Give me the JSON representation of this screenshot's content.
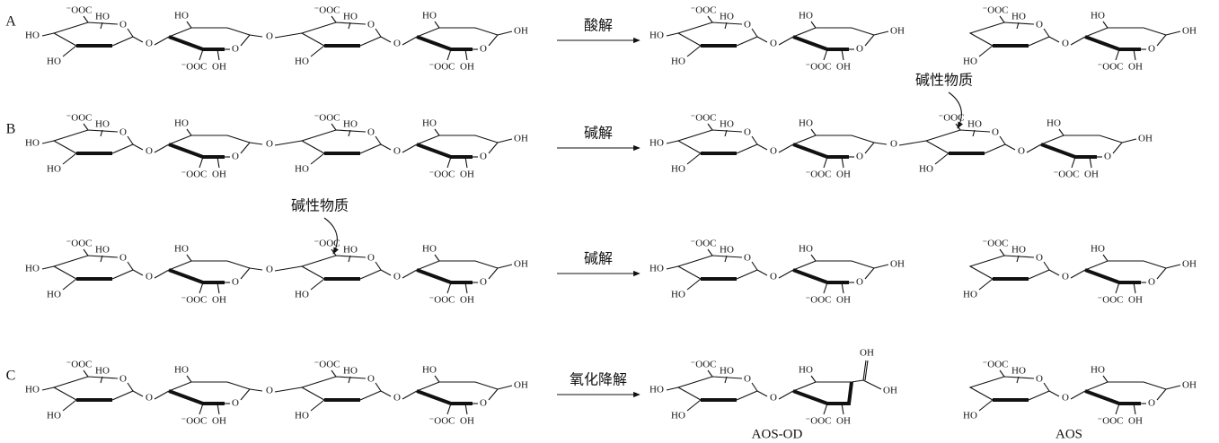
{
  "panels": [
    {
      "label": "A",
      "reactions": [
        {
          "condition": "酸解",
          "reactant": {
            "units": [
              {
                "kind": "a",
                "cooh": "⁻OOC",
                "ho": "HO",
                "ring": "O",
                "c4": "HO",
                "c2": "HO",
                "link": "O"
              },
              {
                "kind": "b",
                "c3": "HO",
                "ring": "O",
                "cooh": "⁻OOC",
                "c2": "OH",
                "link": "O"
              },
              {
                "kind": "a",
                "cooh": "⁻OOC",
                "ho": "HO",
                "ring": "O",
                "c2": "HO",
                "link": "O"
              },
              {
                "kind": "b",
                "c3": "HO",
                "ring": "O",
                "cooh": "⁻OOC",
                "c2": "OH",
                "c1": "OH"
              }
            ]
          },
          "products": [
            {
              "units": [
                {
                  "kind": "a",
                  "cooh": "⁻OOC",
                  "ho": "HO",
                  "ring": "O",
                  "c4": "HO",
                  "c2": "HO",
                  "link": "O"
                },
                {
                  "kind": "b",
                  "c3": "HO",
                  "ring": "O",
                  "cooh": "⁻OOC",
                  "c2": "OH",
                  "c1": "OH"
                }
              ]
            },
            {
              "units": [
                {
                  "kind": "a",
                  "cooh": "⁻OOC",
                  "ho": "HO",
                  "ring": "O",
                  "c2": "HO",
                  "link": "O"
                },
                {
                  "kind": "b",
                  "c3": "HO",
                  "ring": "O",
                  "cooh": "⁻OOC",
                  "c2": "OH",
                  "c1": "OH"
                }
              ]
            }
          ]
        }
      ]
    },
    {
      "label": "B",
      "reactions": [
        {
          "condition": "碱解",
          "reactant": {
            "units": [
              {
                "kind": "a",
                "cooh": "⁻OOC",
                "ho": "HO",
                "ring": "O",
                "c4": "HO",
                "c2": "HO",
                "link": "O"
              },
              {
                "kind": "b",
                "c3": "HO",
                "ring": "O",
                "cooh": "⁻OOC",
                "c2": "OH",
                "link": "O"
              },
              {
                "kind": "a",
                "cooh": "⁻OOC",
                "ho": "HO",
                "ring": "O",
                "c2": "HO",
                "link": "O"
              },
              {
                "kind": "b",
                "c3": "HO",
                "ring": "O",
                "cooh": "⁻OOC",
                "c2": "OH",
                "c1": "OH"
              }
            ]
          },
          "products": [
            {
              "units": [
                {
                  "kind": "a",
                  "cooh": "⁻OOC",
                  "ho": "HO",
                  "ring": "O",
                  "c4": "HO",
                  "c2": "HO",
                  "link": "O"
                },
                {
                  "kind": "b",
                  "c3": "HO",
                  "ring": "O",
                  "cooh": "⁻OOC",
                  "c2": "OH",
                  "link": "O"
                },
                {
                  "kind": "a",
                  "cooh": "⁻OOC",
                  "ho": "HO",
                  "ring": "O",
                  "c2": "HO",
                  "link": "O",
                  "note": "碱性物质"
                },
                {
                  "kind": "b",
                  "c3": "HO",
                  "ring": "O",
                  "cooh": "⁻OOC",
                  "c2": "OH",
                  "c1": "OH"
                }
              ]
            }
          ]
        },
        {
          "condition": "碱解",
          "reactant": {
            "units": [
              {
                "kind": "a",
                "cooh": "⁻OOC",
                "ho": "HO",
                "ring": "O",
                "c4": "HO",
                "c2": "HO",
                "link": "O"
              },
              {
                "kind": "b",
                "c3": "HO",
                "ring": "O",
                "cooh": "⁻OOC",
                "c2": "OH",
                "link": "O"
              },
              {
                "kind": "a",
                "cooh": "⁻OOC",
                "ho": "HO",
                "ring": "O",
                "c2": "HO",
                "link": "O",
                "note": "碱性物质"
              },
              {
                "kind": "b",
                "c3": "HO",
                "ring": "O",
                "cooh": "⁻OOC",
                "c2": "OH",
                "c1": "OH"
              }
            ]
          },
          "products": [
            {
              "units": [
                {
                  "kind": "a",
                  "cooh": "⁻OOC",
                  "ho": "HO",
                  "ring": "O",
                  "c4": "HO",
                  "c2": "HO",
                  "link": "O"
                },
                {
                  "kind": "b",
                  "c3": "HO",
                  "ring": "O",
                  "cooh": "⁻OOC",
                  "c2": "OH",
                  "c1": "OH"
                }
              ]
            },
            {
              "units": [
                {
                  "kind": "a",
                  "cooh": "⁻OOC",
                  "ho": "HO",
                  "ring": "O",
                  "c2": "HO",
                  "link": "O"
                },
                {
                  "kind": "b",
                  "c3": "HO",
                  "ring": "O",
                  "cooh": "⁻OOC",
                  "c2": "OH",
                  "c1": "OH"
                }
              ]
            }
          ]
        }
      ]
    },
    {
      "label": "C",
      "reactions": [
        {
          "condition": "氧化降解",
          "reactant": {
            "units": [
              {
                "kind": "a",
                "cooh": "⁻OOC",
                "ho": "HO",
                "ring": "O",
                "c4": "HO",
                "c2": "HO",
                "link": "O"
              },
              {
                "kind": "b",
                "c3": "HO",
                "ring": "O",
                "cooh": "⁻OOC",
                "c2": "OH",
                "link": "O"
              },
              {
                "kind": "a",
                "cooh": "⁻OOC",
                "ho": "HO",
                "ring": "O",
                "c2": "HO",
                "link": "O"
              },
              {
                "kind": "b",
                "c3": "HO",
                "ring": "O",
                "cooh": "⁻OOC",
                "c2": "OH",
                "c1": "OH"
              }
            ]
          },
          "products": [
            {
              "caption": "AOS-OD",
              "units": [
                {
                  "kind": "a",
                  "cooh": "⁻OOC",
                  "ho": "HO",
                  "ring": "O",
                  "c4": "HO",
                  "c2": "HO",
                  "link": "O"
                },
                {
                  "kind": "c",
                  "c3": "HO",
                  "acid1": "OH",
                  "acid2": "OH",
                  "cooh": "⁻OOC",
                  "c2": "OH"
                }
              ]
            },
            {
              "caption": "AOS",
              "units": [
                {
                  "kind": "a",
                  "cooh": "⁻OOC",
                  "ho": "HO",
                  "ring": "O",
                  "c2": "HO",
                  "link": "O"
                },
                {
                  "kind": "b",
                  "c3": "HO",
                  "ring": "O",
                  "cooh": "⁻OOC",
                  "c2": "OH",
                  "c1": "OH"
                }
              ]
            }
          ]
        }
      ]
    }
  ]
}
